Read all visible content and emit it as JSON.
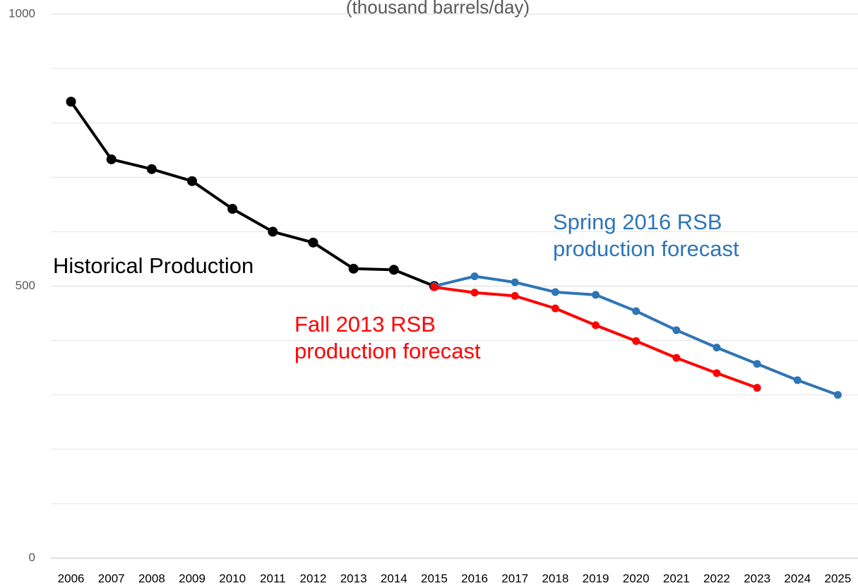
{
  "chart_data": {
    "type": "line",
    "subtitle": "(thousand barrels/day)",
    "categories": [
      "2006",
      "2007",
      "2008",
      "2009",
      "2010",
      "2011",
      "2012",
      "2013",
      "2014",
      "2015",
      "2016",
      "2017",
      "2018",
      "2019",
      "2020",
      "2021",
      "2022",
      "2023",
      "2024",
      "2025"
    ],
    "series": [
      {
        "name": "Historical Production",
        "color": "#000000",
        "values": [
          839,
          733,
          715,
          693,
          642,
          600,
          580,
          532,
          530,
          500,
          null,
          null,
          null,
          null,
          null,
          null,
          null,
          null,
          null,
          null
        ]
      },
      {
        "name": "Spring 2016 RSB production forecast",
        "color": "#2e75b6",
        "values": [
          null,
          null,
          null,
          null,
          null,
          null,
          null,
          null,
          null,
          500,
          518,
          507,
          489,
          484,
          454,
          419,
          387,
          357,
          327,
          300
        ]
      },
      {
        "name": "Fall 2013 RSB production forecast",
        "color": "#ff0000",
        "values": [
          null,
          null,
          null,
          null,
          null,
          null,
          null,
          null,
          null,
          498,
          488,
          482,
          459,
          428,
          399,
          368,
          340,
          313,
          null,
          null
        ]
      }
    ],
    "ylim": [
      0,
      1000
    ],
    "yticks": [
      0,
      500,
      1000
    ],
    "minor_yticks": [
      100,
      200,
      300,
      400,
      600,
      700,
      800,
      900
    ],
    "grid": true
  }
}
